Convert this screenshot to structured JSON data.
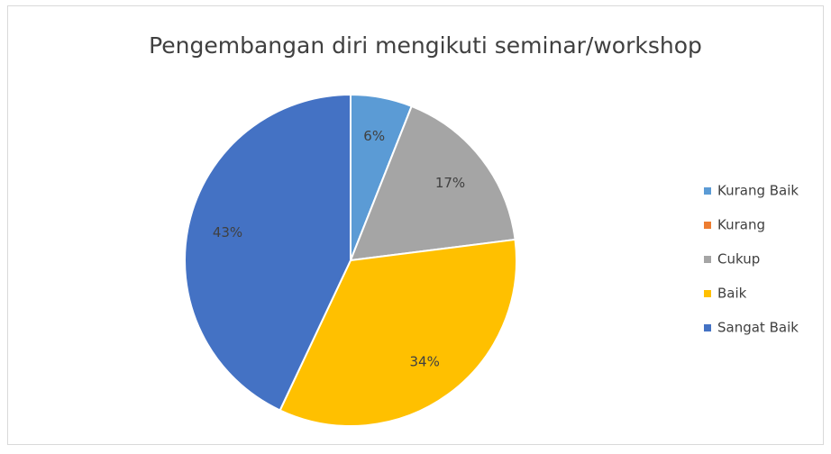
{
  "chart_data": {
    "type": "pie",
    "title": "Pengembangan diri mengikuti seminar/workshop",
    "categories": [
      "Kurang Baik",
      "Kurang",
      "Cukup",
      "Baik",
      "Sangat Baik"
    ],
    "values": [
      6,
      0,
      17,
      34,
      43
    ],
    "value_labels": [
      "6%",
      null,
      "17%",
      "34%",
      "43%"
    ],
    "colors": [
      "#5b9bd5",
      "#ed7d31",
      "#a5a5a5",
      "#ffc000",
      "#4472c4"
    ],
    "legend": "right"
  }
}
